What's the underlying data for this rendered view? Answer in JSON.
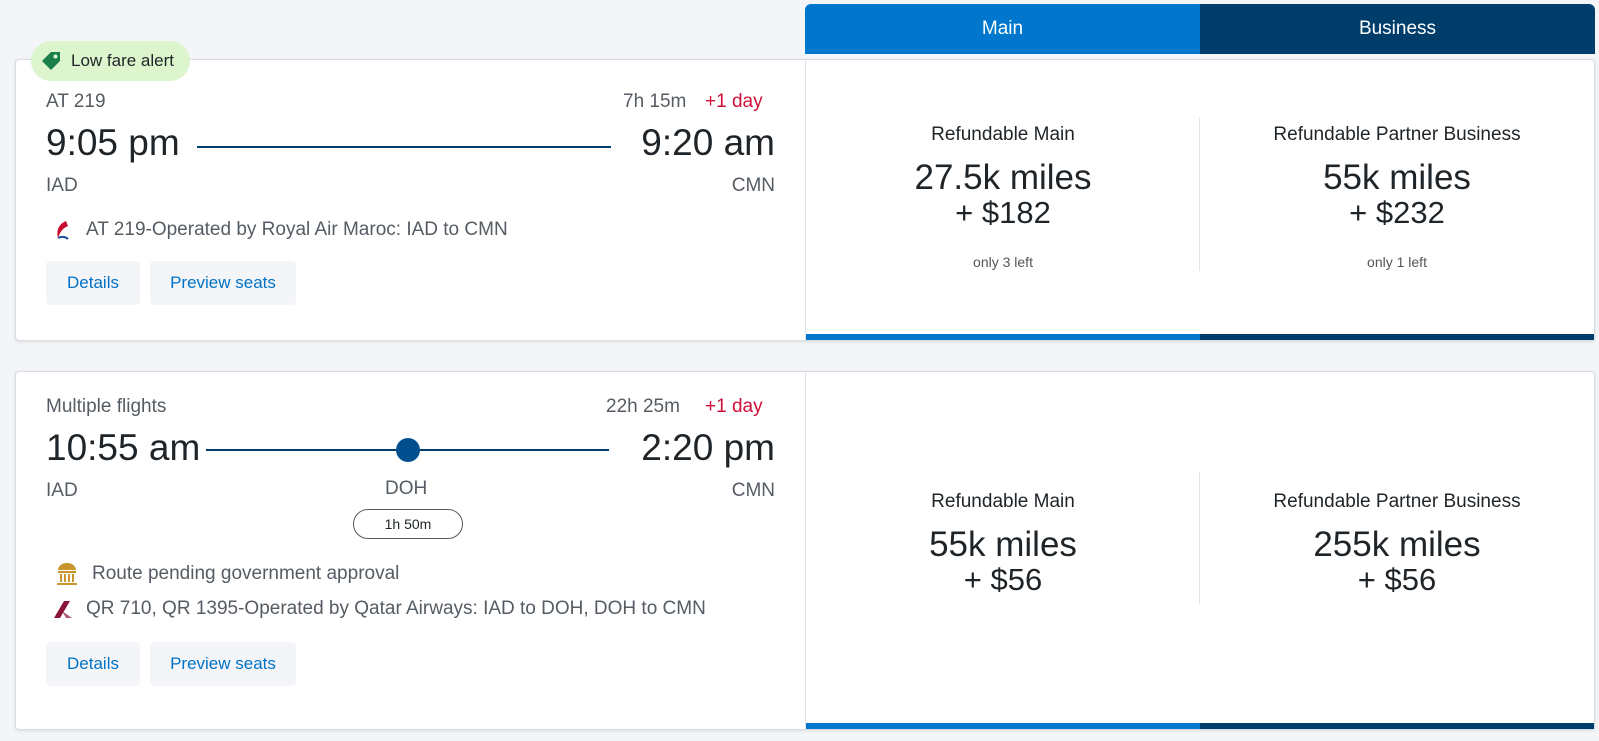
{
  "tabs": {
    "main_label": "Main",
    "business_label": "Business"
  },
  "colors": {
    "main": "#0077cc",
    "business": "#013d6b",
    "alert_red": "#d0103a",
    "badge_green": "#dcf5cc"
  },
  "flights": [
    {
      "badge": "Low fare alert",
      "flight_label": "AT 219",
      "duration": "7h 15m",
      "plus_day": "+1 day",
      "depart_time": "9:05 pm",
      "arrive_time": "9:20 am",
      "origin": "IAD",
      "destination": "CMN",
      "operated_by": "AT 219-Operated by Royal Air Maroc: IAD to CMN",
      "details_label": "Details",
      "preview_label": "Preview seats",
      "fares": [
        {
          "name": "Refundable Main",
          "miles": "27.5k miles",
          "cash": "+ $182",
          "availability": "only 3 left"
        },
        {
          "name": "Refundable Partner Business",
          "miles": "55k miles",
          "cash": "+ $232",
          "availability": "only 1 left"
        }
      ]
    },
    {
      "flight_label": "Multiple flights",
      "duration": "22h 25m",
      "plus_day": "+1 day",
      "depart_time": "10:55 am",
      "arrive_time": "2:20 pm",
      "origin": "IAD",
      "destination": "CMN",
      "stop": "DOH",
      "layover": "1h 50m",
      "notice": "Route pending government approval",
      "operated_by": "QR 710, QR 1395-Operated by Qatar Airways: IAD to DOH, DOH to CMN",
      "details_label": "Details",
      "preview_label": "Preview seats",
      "fares": [
        {
          "name": "Refundable Main",
          "miles": "55k miles",
          "cash": "+ $56"
        },
        {
          "name": "Refundable Partner Business",
          "miles": "255k miles",
          "cash": "+ $56"
        }
      ]
    }
  ]
}
